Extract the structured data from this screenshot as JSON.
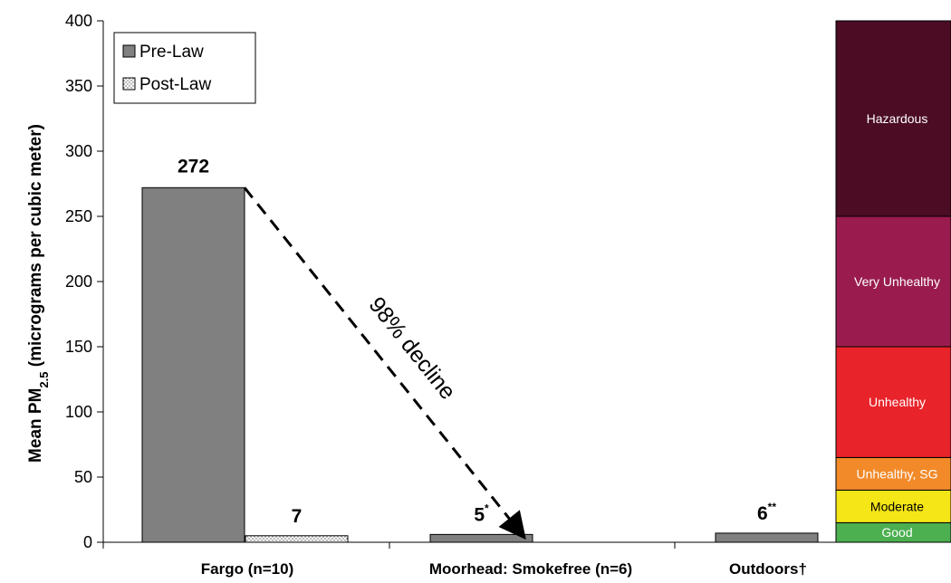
{
  "chart_data": {
    "type": "bar",
    "ylabel": "Mean PM",
    "ylabel_sub": "2.5",
    "ylabel_suffix": " (micrograms per cubic meter)",
    "ylim": [
      0,
      400
    ],
    "yticks": [
      0,
      50,
      100,
      150,
      200,
      250,
      300,
      350,
      400
    ],
    "categories": [
      "Fargo (n=10)",
      "Moorhead: Smokefree (n=6)",
      "Outdoors†"
    ],
    "series": [
      {
        "name": "Pre-Law",
        "values": [
          272,
          6,
          7
        ],
        "color": "#808080"
      },
      {
        "name": "Post-Law",
        "values": [
          5,
          null,
          null
        ],
        "color": "#ffffff",
        "pattern": "dotted"
      }
    ],
    "data_labels": [
      {
        "text": "272",
        "sup": ""
      },
      {
        "text": "5",
        "sup": "*"
      },
      {
        "text": "6",
        "sup": "**"
      },
      {
        "text": "7",
        "sup": ""
      }
    ],
    "annotation": "98% decline",
    "aqi_bands": [
      {
        "label": "Good",
        "from": 0,
        "to": 15,
        "color": "#4caf50"
      },
      {
        "label": "Moderate",
        "from": 15,
        "to": 40,
        "color": "#f5e617"
      },
      {
        "label": "Unhealthy, SG",
        "from": 40,
        "to": 65,
        "color": "#f28a2a"
      },
      {
        "label": "Unhealthy",
        "from": 65,
        "to": 150,
        "color": "#e8232a"
      },
      {
        "label": "Very Unhealthy",
        "from": 150,
        "to": 250,
        "color": "#9a1c4e"
      },
      {
        "label": "Hazardous",
        "from": 250,
        "to": 400,
        "color": "#4b0c24"
      }
    ],
    "legend": {
      "position": "top-left",
      "items": [
        "Pre-Law",
        "Post-Law"
      ]
    }
  }
}
